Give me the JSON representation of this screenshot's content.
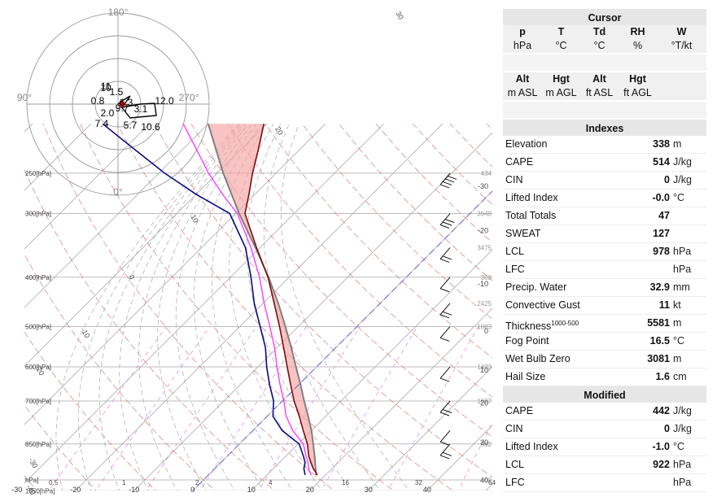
{
  "colors": {
    "temperature": "#7a0d0d",
    "dewpoint": "#0b0b80",
    "parcel": "#808080",
    "cape_fill": "#f4a3a3",
    "wetbulb": "#ff3dff",
    "hodograph_lines": "#000000",
    "isotherm": "#b0b0b0",
    "isobar": "#bdbdbd",
    "dry_adiabat": "#d87070",
    "mixing_ratio": "#e080e0"
  },
  "skewt": {
    "pressure_labels": [
      "250[hPa]",
      "300[hPa]",
      "400[hPa]",
      "500[hPa]",
      "600[hPa]",
      "700[hPa]",
      "850[hPa]",
      "hPa]",
      "1050[hPa]"
    ],
    "left_temp_labels": [
      "-30",
      "-20",
      "-10",
      "0",
      "10",
      "20"
    ],
    "isotherm_labels": [
      "-30",
      "-20",
      "-10",
      "0",
      "10",
      "20",
      "30",
      "40"
    ],
    "right_temp_labels": [
      "-30",
      "-20",
      "-10",
      "0",
      "10",
      "20",
      "30",
      "40"
    ],
    "height_labels": [
      "434",
      "3948",
      "3475",
      "308",
      "2425",
      "1883",
      "1423",
      "1027",
      "582",
      "52"
    ],
    "mixing_labels": [
      "0.5",
      "1",
      "2",
      "4",
      "16",
      "32",
      "64"
    ],
    "adiabat_labels": [
      "30",
      "20",
      "10",
      "0",
      "-10",
      "-20",
      "-30",
      "-40"
    ]
  },
  "chart_data": {
    "type": "line",
    "title": "",
    "xlabel": "",
    "ylabel": "",
    "y_axis": "pressure (hPa, log scale)",
    "x_axis": "temperature (°C, skewed)",
    "pressure_levels": [
      1050,
      850,
      700,
      600,
      500,
      400,
      300,
      250
    ],
    "series": [
      {
        "name": "T",
        "pressure": [
          978,
          950,
          925,
          900,
          850,
          800,
          750,
          700,
          650,
          600,
          550,
          500,
          450,
          400,
          350,
          300,
          275,
          250,
          225,
          200
        ],
        "values": [
          18.6,
          16.8,
          15.4,
          14.0,
          11.6,
          8.6,
          5.5,
          2.0,
          -1.4,
          -5.0,
          -8.9,
          -13.2,
          -18.1,
          -23.6,
          -30.6,
          -38.4,
          -41.0,
          -44.0,
          -47.0,
          -50.5
        ]
      },
      {
        "name": "Td",
        "pressure": [
          978,
          950,
          925,
          900,
          850,
          800,
          750,
          700,
          650,
          600,
          550,
          500,
          450,
          400,
          350,
          300,
          275,
          250,
          225,
          200
        ],
        "values": [
          16.5,
          15.2,
          14.4,
          13.1,
          10.2,
          5.0,
          1.0,
          -1.5,
          -5.0,
          -8.5,
          -12.0,
          -16.5,
          -21.5,
          -26.5,
          -32.5,
          -41.0,
          -50.0,
          -59.0,
          -68.0,
          -78.0
        ]
      },
      {
        "name": "Parcel",
        "pressure": [
          978,
          950,
          900,
          850,
          800,
          750,
          700,
          650,
          600,
          550,
          500,
          450,
          400,
          350,
          300,
          250,
          200
        ],
        "values": [
          18.4,
          17.2,
          15.0,
          12.6,
          10.0,
          7.0,
          3.7,
          0.3,
          -3.5,
          -7.6,
          -12.2,
          -17.4,
          -23.5,
          -30.8,
          -39.4,
          -49.0,
          -60.0
        ]
      }
    ],
    "wind_barbs": [
      {
        "pressure": 250,
        "speed_kt": 40
      },
      {
        "pressure": 300,
        "speed_kt": 30
      },
      {
        "pressure": 350,
        "speed_kt": 20
      },
      {
        "pressure": 400,
        "speed_kt": 10
      },
      {
        "pressure": 450,
        "speed_kt": 15
      },
      {
        "pressure": 500,
        "speed_kt": 10
      },
      {
        "pressure": 600,
        "speed_kt": 10
      },
      {
        "pressure": 700,
        "speed_kt": 20
      },
      {
        "pressure": 800,
        "speed_kt": 10
      },
      {
        "pressure": 850,
        "speed_kt": 20
      }
    ],
    "hodograph": {
      "ring_labels": [
        "180°",
        "90°",
        "270°",
        "0°"
      ],
      "height_labels": [
        "0.8",
        "1.5",
        "10",
        "11",
        "2.0",
        "3.1",
        "12.0",
        "7.4",
        "5.7",
        "10.6",
        "9.7",
        "6.3"
      ]
    }
  },
  "panel": {
    "cursor": {
      "title": "Cursor",
      "row1_headers": [
        "p",
        "T",
        "Td",
        "RH",
        "W"
      ],
      "row1_units": [
        "hPa",
        "°C",
        "°C",
        "%",
        "°T/kt"
      ],
      "row2_headers": [
        "Alt",
        "Hgt",
        "Alt",
        "Hgt"
      ],
      "row2_units": [
        "m ASL",
        "m AGL",
        "ft ASL",
        "ft AGL"
      ]
    },
    "indexes": {
      "title": "Indexes",
      "rows": [
        {
          "label": "Elevation",
          "value": "338",
          "unit": "m"
        },
        {
          "label": "CAPE",
          "value": "514",
          "unit": "J/kg"
        },
        {
          "label": "CIN",
          "value": "0",
          "unit": "J/kg"
        },
        {
          "label": "Lifted Index",
          "value": "-0.0",
          "unit": "°C"
        },
        {
          "label": "Total Totals",
          "value": "47",
          "unit": ""
        },
        {
          "label": "SWEAT",
          "value": "127",
          "unit": ""
        },
        {
          "label": "LCL",
          "value": "978",
          "unit": "hPa"
        },
        {
          "label": "LFC",
          "value": "",
          "unit": "hPa"
        },
        {
          "label": "Precip. Water",
          "value": "32.9",
          "unit": "mm"
        },
        {
          "label": "Convective Gust",
          "value": "11",
          "unit": "kt"
        },
        {
          "label": "Thickness",
          "sup": "1000-500",
          "value": "5581",
          "unit": "m"
        },
        {
          "label": "Fog Point",
          "value": "16.5",
          "unit": "°C"
        },
        {
          "label": "Wet Bulb Zero",
          "value": "3081",
          "unit": "m"
        },
        {
          "label": "Hail Size",
          "value": "1.6",
          "unit": "cm"
        }
      ]
    },
    "modified": {
      "title": "Modified",
      "rows": [
        {
          "label": "CAPE",
          "value": "442",
          "unit": "J/kg"
        },
        {
          "label": "CIN",
          "value": "0",
          "unit": "J/kg"
        },
        {
          "label": "Lifted Index",
          "value": "-1.0",
          "unit": "°C"
        },
        {
          "label": "LCL",
          "value": "922",
          "unit": "hPa"
        },
        {
          "label": "LFC",
          "value": "",
          "unit": "hPa"
        }
      ]
    }
  }
}
